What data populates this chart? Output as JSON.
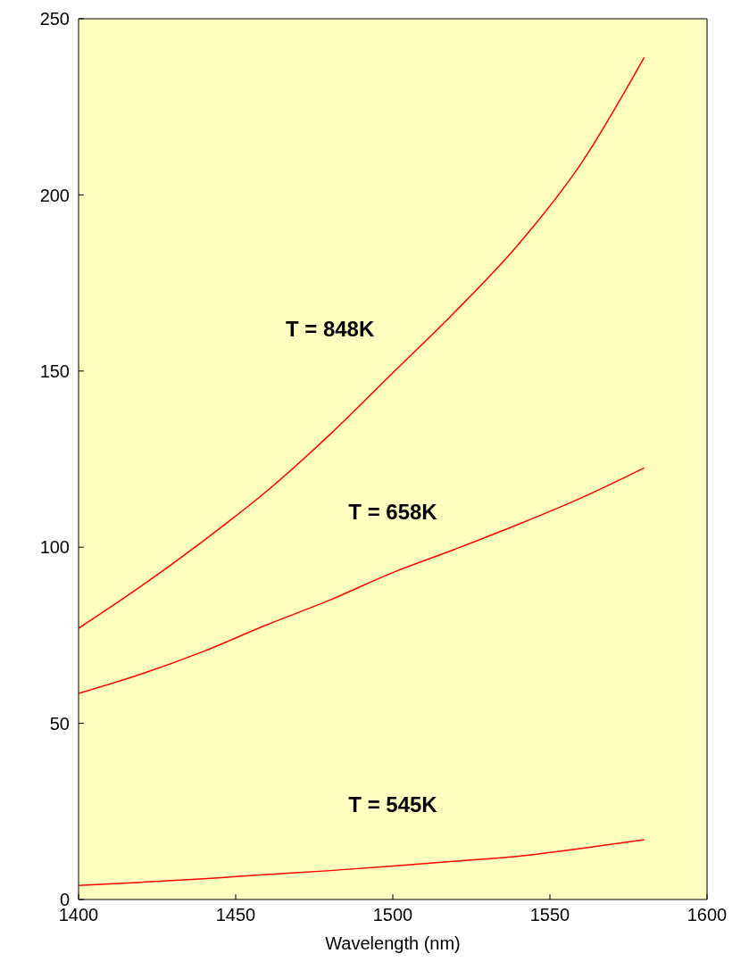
{
  "chart_data": {
    "type": "line",
    "xlabel": "Wavelength (nm)",
    "xlim": [
      1400,
      1600
    ],
    "xticks": [
      1400,
      1450,
      1500,
      1550,
      1600
    ],
    "ylim": [
      0,
      250
    ],
    "yticks": [
      0,
      50,
      100,
      150,
      200,
      250
    ],
    "grid": false,
    "legend": false,
    "marker": "none",
    "line_style": "solid",
    "x": [
      1400,
      1420,
      1440,
      1460,
      1480,
      1500,
      1520,
      1540,
      1560,
      1580
    ],
    "series": [
      {
        "color": "#ff0000",
        "values": [
          77,
          89,
          102,
          116,
          132,
          149.5,
          167,
          186,
          209,
          239
        ]
      },
      {
        "color": "#ff0000",
        "values": [
          58.5,
          64,
          70.5,
          78,
          85,
          92.8,
          99.5,
          106.5,
          114,
          122.5
        ]
      },
      {
        "color": "#ff0000",
        "values": [
          4,
          4.9,
          5.9,
          7.1,
          8.2,
          9.5,
          10.9,
          12.3,
          14.5,
          17
        ]
      }
    ],
    "annotations": [
      "T = 848K",
      "T = 658K",
      "T = 545K"
    ]
  }
}
